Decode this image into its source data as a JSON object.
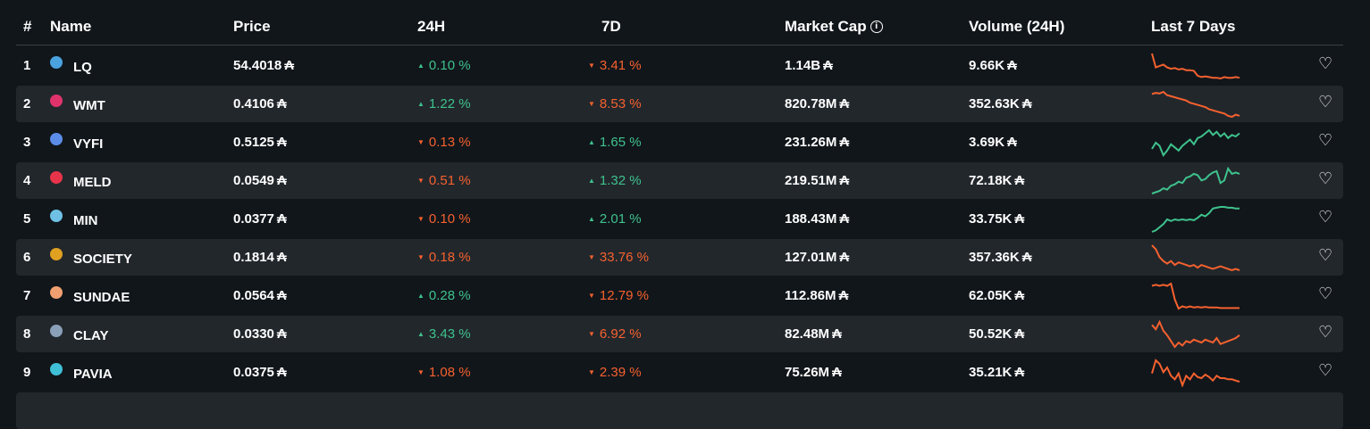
{
  "header": {
    "rank": "#",
    "name": "Name",
    "price": "Price",
    "h24": "24H",
    "d7": "7D",
    "mcap": "Market Cap",
    "volume": "Volume (24H)",
    "last7": "Last 7 Days",
    "info_icon": "ⓘ"
  },
  "currency_symbol": "₳",
  "colors": {
    "background": "#11161b",
    "row_alt": "#22272c",
    "up": "#3ec28c",
    "down": "#f5612e"
  },
  "rows": [
    {
      "rank": "1",
      "name": "LQ",
      "price": "54.4018",
      "h24": "0.10 %",
      "h24_dir": "up",
      "d7": "3.41 %",
      "d7_dir": "down",
      "mcap": "1.14B",
      "volume": "9.66K",
      "icon": "droplet-icon",
      "icon_color": "#4aa3df",
      "spark": [
        90,
        70,
        72,
        74,
        70,
        68,
        69,
        67,
        68,
        66,
        66,
        65,
        58,
        56,
        57,
        56,
        55,
        55,
        54,
        56,
        55,
        55,
        56,
        55
      ]
    },
    {
      "rank": "2",
      "name": "WMT",
      "price": "0.4106",
      "h24": "1.22 %",
      "h24_dir": "up",
      "d7": "8.53 %",
      "d7_dir": "down",
      "mcap": "820.78M",
      "volume": "352.63K",
      "icon": "wmt-icon",
      "icon_color": "#e0336b",
      "spark": [
        80,
        82,
        81,
        84,
        78,
        76,
        74,
        72,
        70,
        68,
        64,
        62,
        60,
        58,
        56,
        52,
        50,
        48,
        46,
        44,
        40,
        38,
        42,
        40
      ]
    },
    {
      "rank": "3",
      "name": "VYFI",
      "price": "0.5125",
      "h24": "0.13 %",
      "h24_dir": "down",
      "d7": "1.65 %",
      "d7_dir": "up",
      "mcap": "231.26M",
      "volume": "3.69K",
      "icon": "vyfi-icon",
      "icon_color": "#5b8de8",
      "spark": [
        40,
        48,
        44,
        32,
        38,
        46,
        42,
        38,
        44,
        48,
        52,
        46,
        54,
        56,
        60,
        64,
        58,
        62,
        56,
        60,
        54,
        58,
        56,
        60
      ]
    },
    {
      "rank": "4",
      "name": "MELD",
      "price": "0.0549",
      "h24": "0.51 %",
      "h24_dir": "down",
      "d7": "1.32 %",
      "d7_dir": "up",
      "mcap": "219.51M",
      "volume": "72.18K",
      "icon": "meld-icon",
      "icon_color": "#e8344a",
      "spark": [
        30,
        32,
        34,
        38,
        36,
        42,
        44,
        48,
        46,
        54,
        56,
        60,
        58,
        50,
        52,
        58,
        62,
        64,
        46,
        50,
        68,
        60,
        62,
        60
      ]
    },
    {
      "rank": "5",
      "name": "MIN",
      "price": "0.0377",
      "h24": "0.10 %",
      "h24_dir": "down",
      "d7": "2.01 %",
      "d7_dir": "up",
      "mcap": "188.43M",
      "volume": "33.75K",
      "icon": "min-icon",
      "icon_color": "#6ec1e4",
      "spark": [
        30,
        32,
        36,
        40,
        46,
        44,
        46,
        45,
        46,
        45,
        46,
        45,
        48,
        52,
        50,
        54,
        60,
        61,
        62,
        62,
        61,
        61,
        60,
        60
      ]
    },
    {
      "rank": "6",
      "name": "SOCIETY",
      "price": "0.1814",
      "h24": "0.18 %",
      "h24_dir": "down",
      "d7": "33.76 %",
      "d7_dir": "down",
      "mcap": "127.01M",
      "volume": "357.36K",
      "icon": "society-icon",
      "icon_color": "#e0a020",
      "spark": [
        80,
        74,
        62,
        56,
        52,
        56,
        50,
        54,
        52,
        50,
        48,
        50,
        46,
        50,
        48,
        46,
        44,
        46,
        48,
        46,
        44,
        42,
        44,
        42
      ]
    },
    {
      "rank": "7",
      "name": "SUNDAE",
      "price": "0.0564",
      "h24": "0.28 %",
      "h24_dir": "up",
      "d7": "12.79 %",
      "d7_dir": "down",
      "mcap": "112.86M",
      "volume": "62.05K",
      "icon": "sundae-icon",
      "icon_color": "#f0a070",
      "spark": [
        80,
        82,
        80,
        82,
        80,
        84,
        56,
        40,
        44,
        42,
        44,
        42,
        43,
        42,
        43,
        42,
        42,
        42,
        41,
        41,
        41,
        41,
        41,
        41
      ]
    },
    {
      "rank": "8",
      "name": "CLAY",
      "price": "0.0330",
      "h24": "3.43 %",
      "h24_dir": "up",
      "d7": "6.92 %",
      "d7_dir": "down",
      "mcap": "82.48M",
      "volume": "50.52K",
      "icon": "clay-icon",
      "icon_color": "#8aa0b8",
      "spark": [
        70,
        64,
        74,
        62,
        56,
        48,
        40,
        46,
        42,
        48,
        46,
        50,
        48,
        46,
        50,
        48,
        46,
        52,
        44,
        46,
        48,
        50,
        52,
        56
      ]
    },
    {
      "rank": "9",
      "name": "PAVIA",
      "price": "0.0375",
      "h24": "1.08 %",
      "h24_dir": "down",
      "d7": "2.39 %",
      "d7_dir": "down",
      "mcap": "75.26M",
      "volume": "35.21K",
      "icon": "pavia-icon",
      "icon_color": "#3fc0d6",
      "spark": [
        60,
        82,
        76,
        62,
        70,
        56,
        50,
        60,
        40,
        56,
        50,
        60,
        54,
        52,
        58,
        54,
        48,
        56,
        52,
        52,
        50,
        50,
        48,
        46
      ]
    }
  ]
}
